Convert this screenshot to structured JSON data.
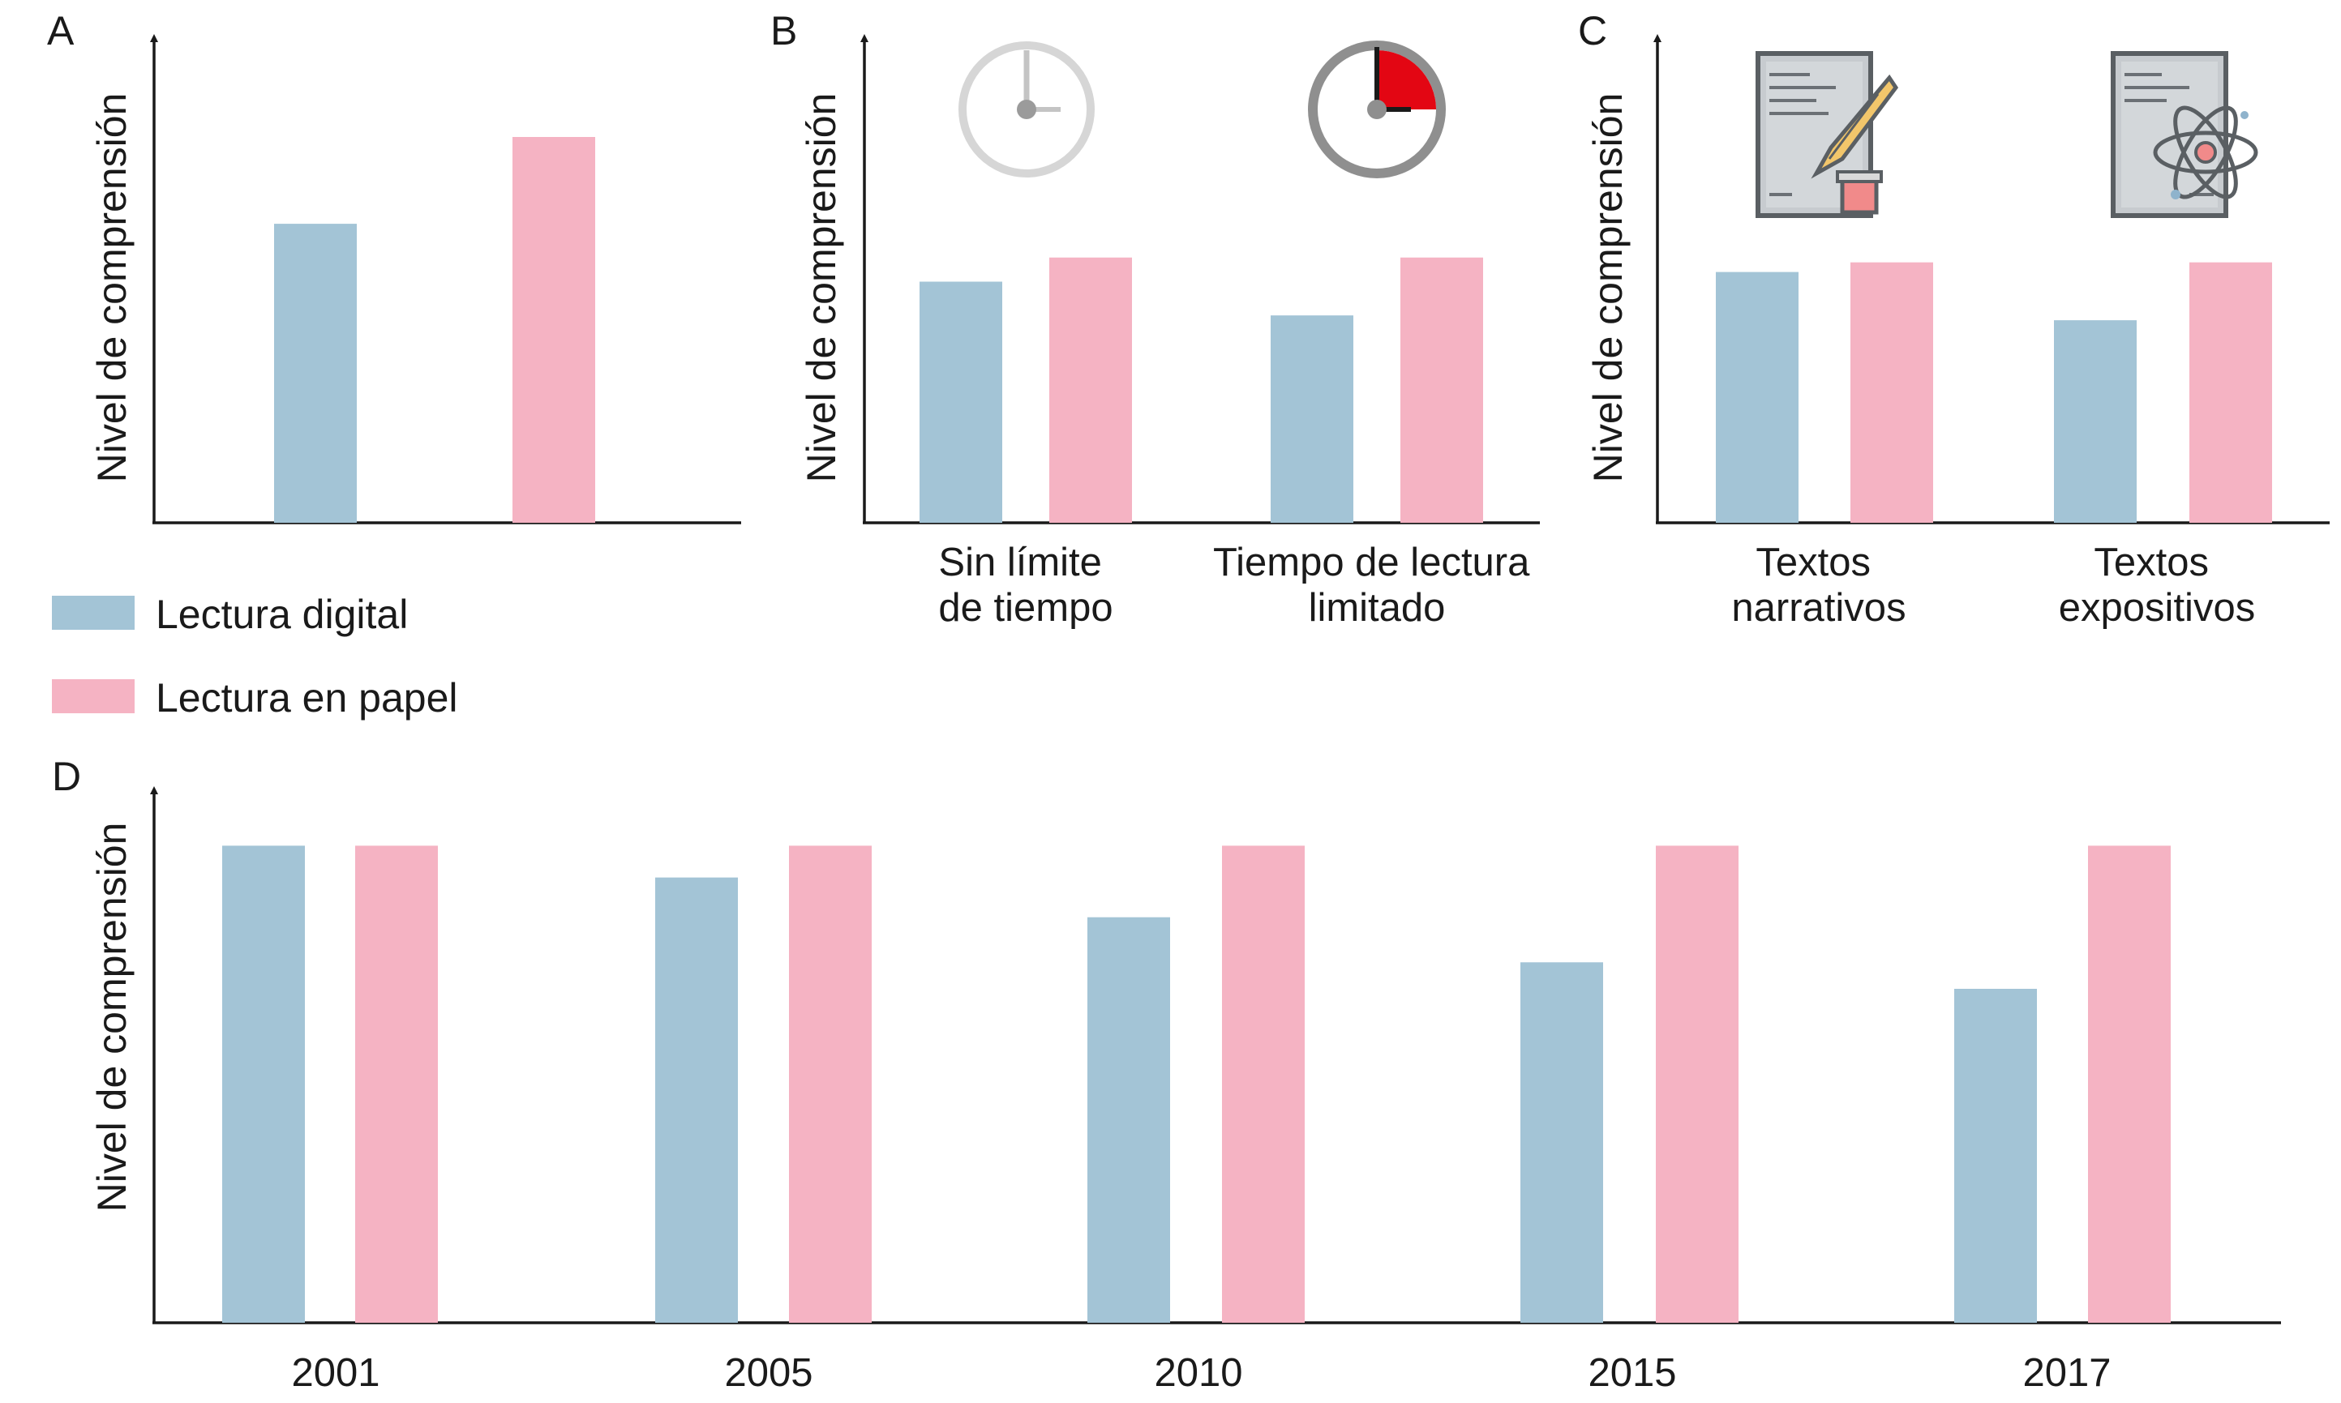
{
  "colors": {
    "digital": "#a3c4d6",
    "paper": "#f5b3c3",
    "axis": "#1a1a1a"
  },
  "legend": {
    "digital_label": "Lectura digital",
    "paper_label": "Lectura en papel"
  },
  "icons": {
    "panel_b": [
      "clock-unlimited-icon",
      "clock-limited-icon"
    ],
    "panel_c": [
      "narrative-document-icon",
      "expository-document-icon"
    ]
  },
  "chart_data": [
    {
      "id": "A",
      "panel_label": "A",
      "type": "bar",
      "ylabel": "Nivel de comprensión",
      "ylim": [
        0,
        100
      ],
      "categories": [
        ""
      ],
      "series": [
        {
          "name": "Lectura digital",
          "values": [
            62
          ]
        },
        {
          "name": "Lectura en papel",
          "values": [
            80
          ]
        }
      ]
    },
    {
      "id": "B",
      "panel_label": "B",
      "type": "bar",
      "ylabel": "Nivel de comprensión",
      "ylim": [
        0,
        100
      ],
      "categories": [
        [
          "Sin límite",
          "de tiempo"
        ],
        [
          "Tiempo de lectura",
          "limitado"
        ]
      ],
      "series": [
        {
          "name": "Lectura digital",
          "values": [
            50,
            43
          ]
        },
        {
          "name": "Lectura en papel",
          "values": [
            55,
            55
          ]
        }
      ]
    },
    {
      "id": "C",
      "panel_label": "C",
      "type": "bar",
      "ylabel": "Nivel de comprensión",
      "ylim": [
        0,
        100
      ],
      "categories": [
        [
          "Textos",
          "narrativos"
        ],
        [
          "Textos",
          "expositivos"
        ]
      ],
      "series": [
        {
          "name": "Lectura digital",
          "values": [
            52,
            42
          ]
        },
        {
          "name": "Lectura en papel",
          "values": [
            54,
            54
          ]
        }
      ]
    },
    {
      "id": "D",
      "panel_label": "D",
      "type": "bar",
      "ylabel": "Nivel de comprensión",
      "ylim": [
        0,
        100
      ],
      "categories": [
        "2001",
        "2005",
        "2010",
        "2015",
        "2017"
      ],
      "series": [
        {
          "name": "Lectura digital",
          "values": [
            90,
            84,
            76.5,
            68,
            63
          ]
        },
        {
          "name": "Lectura en papel",
          "values": [
            90,
            90,
            90,
            90,
            90
          ]
        }
      ]
    }
  ]
}
